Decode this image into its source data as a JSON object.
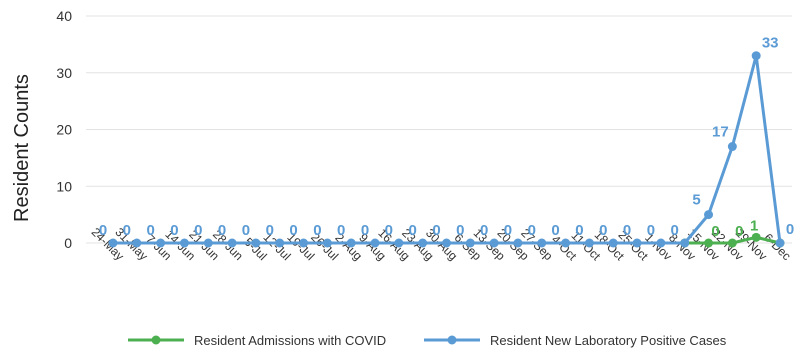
{
  "chart_data": {
    "type": "line",
    "title": "",
    "xlabel": "",
    "ylabel": "Resident Counts",
    "ylim": [
      0,
      40
    ],
    "yticks": [
      0,
      10,
      20,
      30,
      40
    ],
    "grid": "horizontal",
    "legend_position": "bottom",
    "categories": [
      "24-May",
      "31-May",
      "7-Jun",
      "14-Jun",
      "21-Jun",
      "28-Jun",
      "5-Jul",
      "12-Jul",
      "19-Jul",
      "26-Jul",
      "2-Aug",
      "9-Aug",
      "16-Aug",
      "23-Aug",
      "30-Aug",
      "6-Sep",
      "13-Sep",
      "20-Sep",
      "27-Sep",
      "4-Oct",
      "11-Oct",
      "18-Oct",
      "25-Oct",
      "1-Nov",
      "8-Nov",
      "15-Nov",
      "22-Nov",
      "29-Nov",
      "6-Dec"
    ],
    "series": [
      {
        "name": "Resident Admissions with COVID",
        "color": "#4caf50",
        "values": [
          null,
          null,
          null,
          null,
          null,
          null,
          null,
          null,
          null,
          null,
          null,
          null,
          null,
          null,
          null,
          null,
          null,
          null,
          null,
          null,
          null,
          null,
          null,
          null,
          0,
          0,
          0,
          1,
          0
        ],
        "labels": [
          null,
          null,
          null,
          null,
          null,
          null,
          null,
          null,
          null,
          null,
          null,
          null,
          null,
          null,
          null,
          null,
          null,
          null,
          null,
          null,
          null,
          null,
          null,
          null,
          null,
          "0",
          "0",
          "1",
          null
        ]
      },
      {
        "name": "Resident New Laboratory Positive Cases",
        "color": "#5b9bd5",
        "values": [
          0,
          0,
          0,
          0,
          0,
          0,
          0,
          0,
          0,
          0,
          0,
          0,
          0,
          0,
          0,
          0,
          0,
          0,
          0,
          0,
          0,
          0,
          0,
          0,
          0,
          5,
          17,
          33,
          0
        ],
        "labels": [
          "0",
          "0",
          "0",
          "0",
          "0",
          "0",
          "0",
          "0",
          "0",
          "0",
          "0",
          "0",
          "0",
          "0",
          "0",
          "0",
          "0",
          "0",
          "0",
          "0",
          "0",
          "0",
          "0",
          "0",
          "0",
          "5",
          "17",
          "33",
          "0"
        ]
      }
    ]
  }
}
